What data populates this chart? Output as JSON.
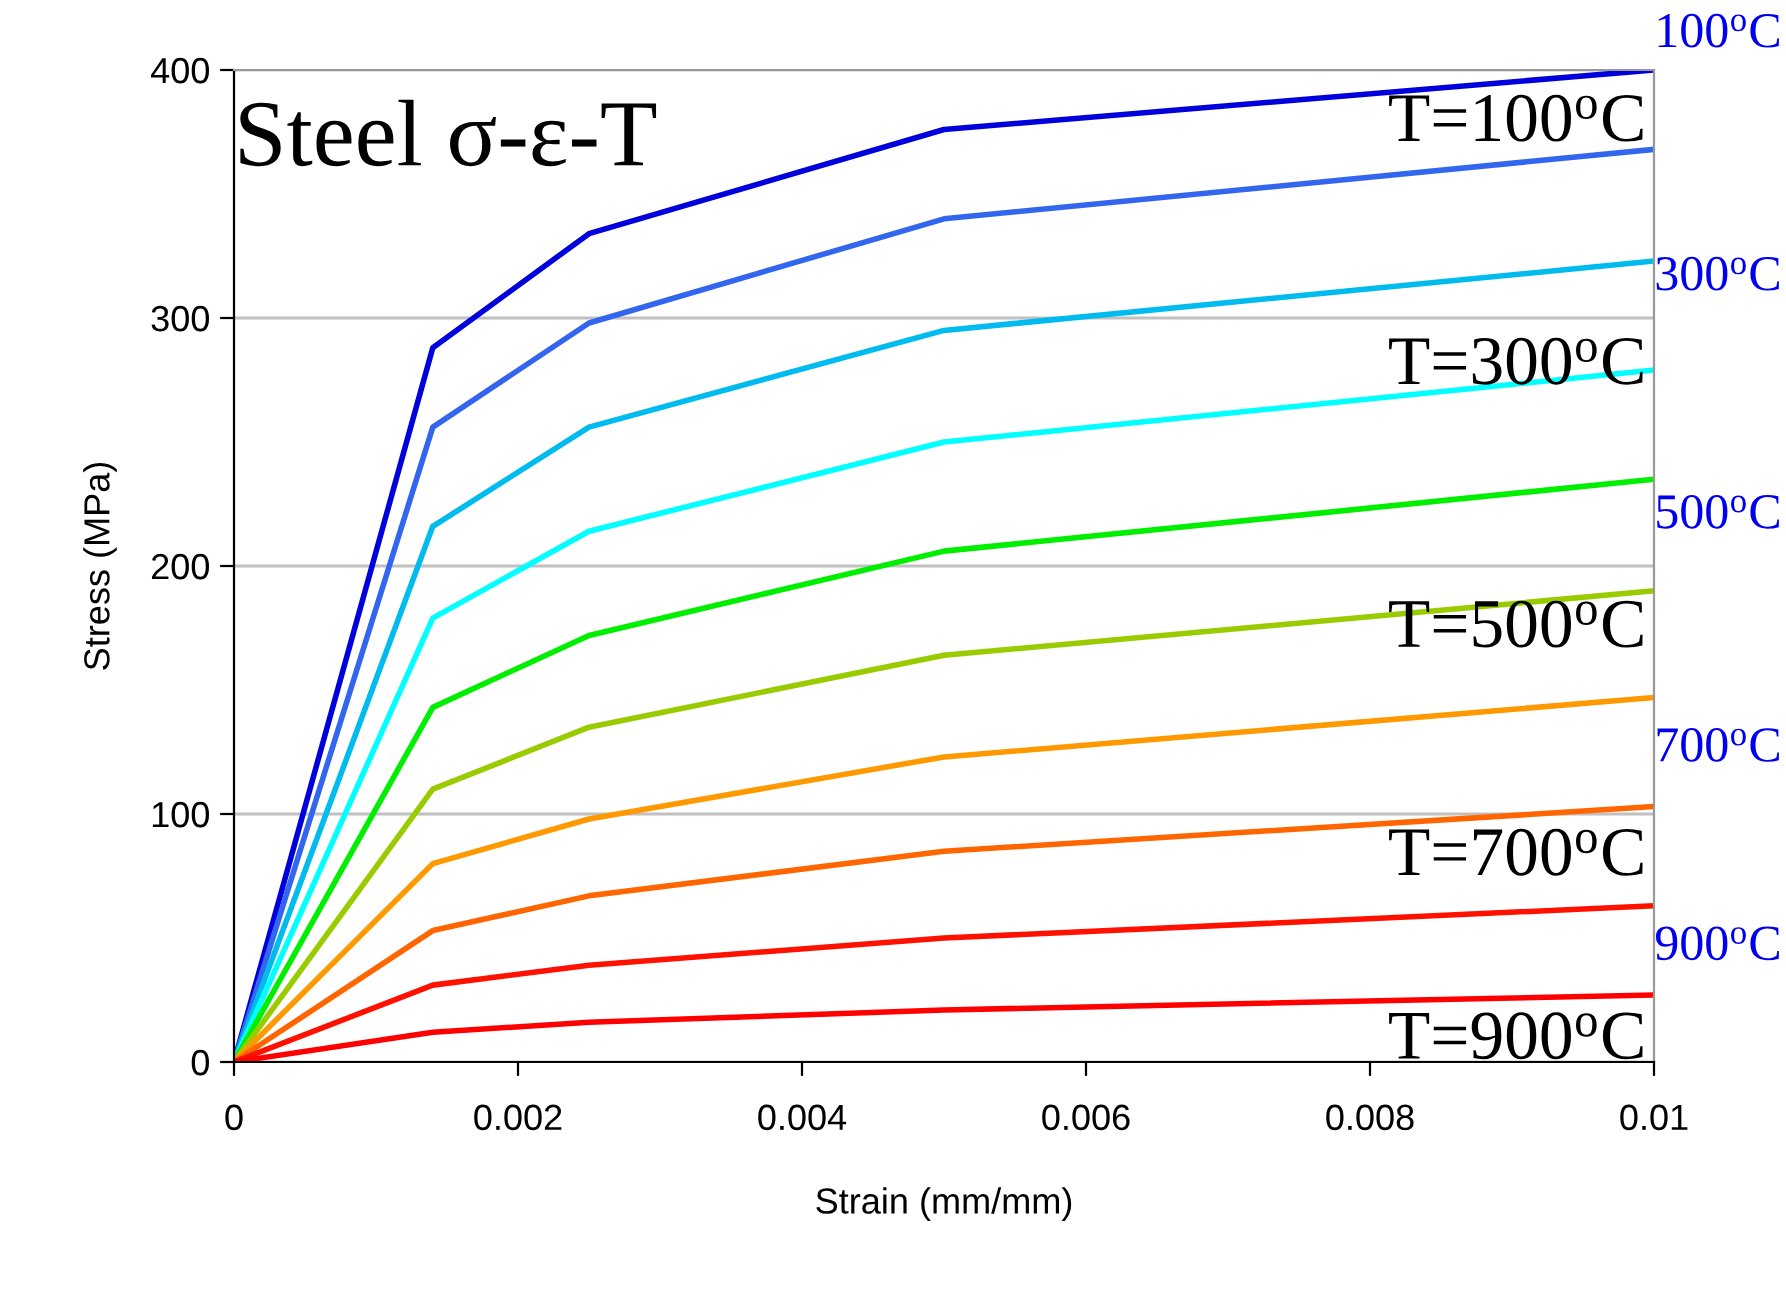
{
  "chart_data": {
    "type": "line",
    "title": "Steel σ-ε-T",
    "xlabel": "Strain (mm/mm)",
    "ylabel": "Stress (MPa)",
    "x": [
      0,
      0.0014,
      0.0025,
      0.005,
      0.01
    ],
    "series": [
      {
        "color": "#0000dd",
        "values": [
          0,
          288,
          334,
          376,
          400
        ]
      },
      {
        "color": "#3366ee",
        "values": [
          0,
          256,
          298,
          340,
          368
        ]
      },
      {
        "color": "#00bbee",
        "values": [
          0,
          216,
          256,
          295,
          323
        ]
      },
      {
        "color": "#00ffff",
        "values": [
          0,
          179,
          214,
          250,
          279
        ]
      },
      {
        "color": "#00ee00",
        "values": [
          0,
          143,
          172,
          206,
          235
        ]
      },
      {
        "color": "#99cc00",
        "values": [
          0,
          110,
          135,
          164,
          190
        ]
      },
      {
        "color": "#ff9900",
        "values": [
          0,
          80,
          98,
          123,
          147
        ]
      },
      {
        "color": "#ff6600",
        "values": [
          0,
          53,
          67,
          85,
          103
        ]
      },
      {
        "color": "#ff1100",
        "values": [
          0,
          31,
          39,
          50,
          63
        ]
      },
      {
        "color": "#ff0000",
        "values": [
          0,
          12,
          16,
          21,
          27
        ]
      }
    ],
    "annotations": [
      "100$^{o}$C",
      "T=100$^{o}$C",
      "300$^{o}$C",
      "T=300$^{o}$C",
      "500$^{o}$C",
      "T=500$^{o}$C",
      "700$^{o}$C",
      "T=700$^{o}$C",
      "900$^{o}$C",
      "T=900$^{o}$C"
    ],
    "xlim": [
      0,
      0.01
    ],
    "ylim": [
      0,
      400
    ],
    "xticks": [
      0,
      0.002,
      0.004,
      0.006,
      0.008,
      {
        "value": 0.01,
        "label": "0.01"
      }
    ],
    "yticks": [
      0,
      100,
      200,
      300,
      400
    ],
    "grid": "y",
    "marker": "none",
    "line_style": "solid"
  }
}
